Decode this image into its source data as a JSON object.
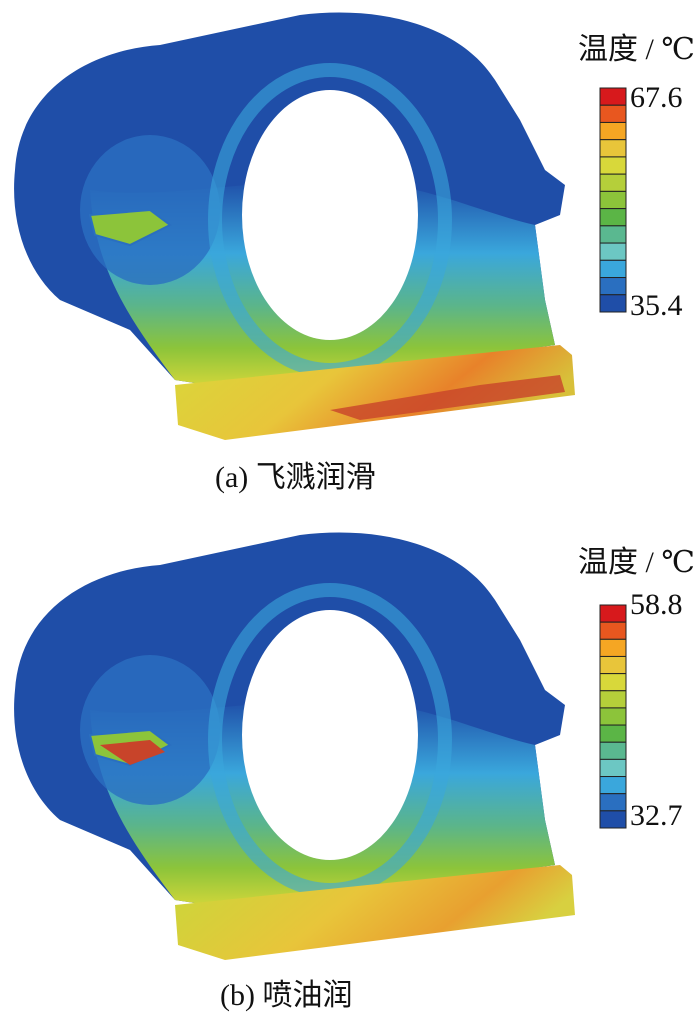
{
  "panels": [
    {
      "legend_title": "温度 / ℃",
      "max": 67.6,
      "min": 35.4,
      "caption": "(a) 飞溅润滑"
    },
    {
      "legend_title": "温度 / ℃",
      "max": 58.8,
      "min": 32.7,
      "caption": "(b) 喷油润"
    }
  ]
}
